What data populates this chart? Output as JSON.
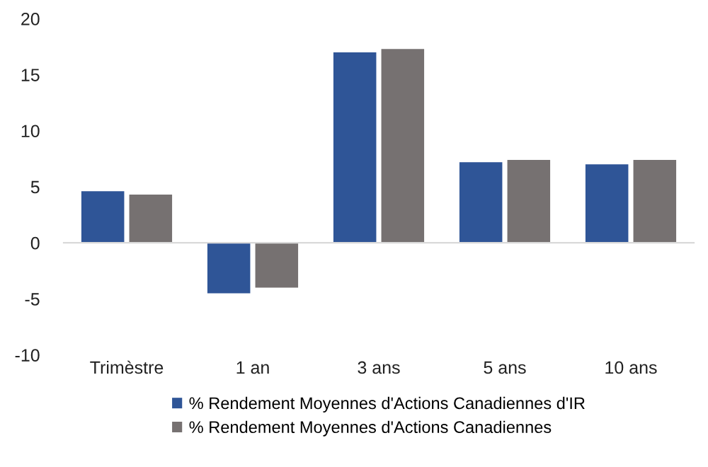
{
  "chart_data": {
    "type": "bar",
    "categories": [
      "Trimèstre",
      "1 an",
      "3 ans",
      "5 ans",
      "10 ans"
    ],
    "series": [
      {
        "name": "% Rendement Moyennes d'Actions Canadiennes d'IR",
        "color": "#2f5597",
        "values": [
          4.6,
          -4.5,
          17.0,
          7.2,
          7.0
        ]
      },
      {
        "name": "% Rendement Moyennes d'Actions Canadiennes",
        "color": "#767171",
        "values": [
          4.3,
          -4.0,
          17.3,
          7.4,
          7.4
        ]
      }
    ],
    "ylim": [
      -10,
      20
    ],
    "yticks": [
      -10,
      -5,
      0,
      5,
      10,
      15,
      20
    ],
    "legend": "bottom"
  }
}
